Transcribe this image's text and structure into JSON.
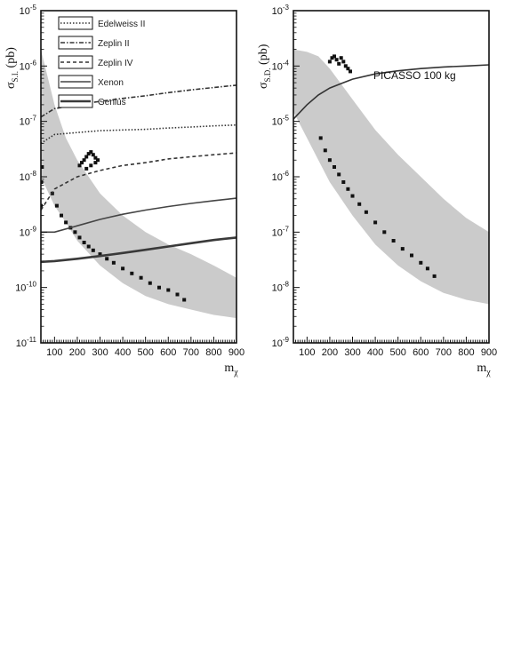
{
  "chart_data": [
    {
      "type": "line",
      "title": "",
      "xlabel": "m_χ",
      "ylabel": "σ_S.I. (pb)",
      "xlim": [
        40,
        900
      ],
      "ylim_log10": [
        -11,
        -5
      ],
      "log_y": true,
      "x_ticks": [
        "100",
        "200",
        "300",
        "400",
        "500",
        "600",
        "700",
        "800",
        "900"
      ],
      "y_ticks": [
        {
          "base": "10",
          "exp": "-11"
        },
        {
          "base": "10",
          "exp": "-10"
        },
        {
          "base": "10",
          "exp": "-9"
        },
        {
          "base": "10",
          "exp": "-8"
        },
        {
          "base": "10",
          "exp": "-7"
        },
        {
          "base": "10",
          "exp": "-6"
        },
        {
          "base": "10",
          "exp": "-5"
        }
      ],
      "legend_position": "top-left",
      "series": [
        {
          "name": "Edelweiss II",
          "style": "dotted",
          "color": "#333333",
          "x": [
            40,
            100,
            200,
            300,
            400,
            500,
            600,
            700,
            800,
            900
          ],
          "y": [
            4e-08,
            5.8e-08,
            6.3e-08,
            6.8e-08,
            7e-08,
            7.2e-08,
            7.6e-08,
            7.9e-08,
            8.3e-08,
            8.6e-08
          ]
        },
        {
          "name": "Zeplin II",
          "style": "dashdot",
          "color": "#333333",
          "x": [
            40,
            100,
            200,
            300,
            400,
            500,
            600,
            700,
            800,
            900
          ],
          "y": [
            1.2e-07,
            1.7e-07,
            2e-07,
            2.3e-07,
            2.6e-07,
            2.9e-07,
            3.3e-07,
            3.7e-07,
            4.1e-07,
            4.5e-07
          ]
        },
        {
          "name": "Zeplin IV",
          "style": "dashed",
          "color": "#333333",
          "x": [
            40,
            100,
            200,
            300,
            400,
            500,
            600,
            700,
            800,
            900
          ],
          "y": [
            2.5e-09,
            6e-09,
            1e-08,
            1.3e-08,
            1.6e-08,
            1.8e-08,
            2.1e-08,
            2.3e-08,
            2.5e-08,
            2.7e-08
          ]
        },
        {
          "name": "Xenon",
          "style": "solid",
          "color": "#444444",
          "x": [
            40,
            100,
            200,
            300,
            400,
            500,
            600,
            700,
            800,
            900
          ],
          "y": [
            1e-09,
            1e-09,
            1.3e-09,
            1.7e-09,
            2.1e-09,
            2.5e-09,
            2.9e-09,
            3.3e-09,
            3.7e-09,
            4.1e-09
          ]
        },
        {
          "name": "Genius",
          "style": "solid-thick",
          "color": "#3a3a3a",
          "x": [
            40,
            100,
            200,
            300,
            400,
            500,
            600,
            700,
            800,
            900
          ],
          "y": [
            2.9e-10,
            3e-10,
            3.3e-10,
            3.7e-10,
            4.2e-10,
            4.8e-10,
            5.5e-10,
            6.3e-10,
            7.2e-10,
            8e-10
          ]
        }
      ],
      "bands": [
        {
          "color": "#c8c8c8",
          "x": [
            40,
            100,
            150,
            200,
            300,
            400,
            500,
            600,
            700,
            800,
            900
          ],
          "upper": [
            2e-06,
            2e-07,
            5e-08,
            2e-08,
            5e-09,
            2e-09,
            1e-09,
            6e-10,
            4e-10,
            2.5e-10,
            1.5e-10
          ],
          "lower": [
            1e-08,
            3e-09,
            1.5e-09,
            7e-10,
            2.5e-10,
            1.2e-10,
            7e-11,
            5e-11,
            4e-11,
            3.2e-11,
            2.8e-11
          ]
        }
      ],
      "scatter": [
        {
          "color": "#111111",
          "x": [
            40,
            42,
            45,
            90,
            110,
            130,
            150,
            170,
            190,
            210,
            230,
            250,
            270,
            300,
            330,
            360,
            400,
            440,
            480,
            520,
            560,
            600,
            640,
            670
          ],
          "y": [
            3e-09,
            8e-09,
            1.5e-08,
            5e-09,
            3e-09,
            2e-09,
            1.5e-09,
            1.2e-09,
            1e-09,
            8e-10,
            6.5e-10,
            5.5e-10,
            4.7e-10,
            4e-10,
            3.3e-10,
            2.8e-10,
            2.2e-10,
            1.8e-10,
            1.5e-10,
            1.2e-10,
            1e-10,
            9e-11,
            7.5e-11,
            6e-11
          ]
        },
        {
          "color": "#111111",
          "x": [
            210,
            220,
            230,
            240,
            250,
            260,
            270,
            280,
            290,
            240,
            260,
            280
          ],
          "y": [
            1.6e-08,
            1.8e-08,
            2e-08,
            2.3e-08,
            2.6e-08,
            2.8e-08,
            2.5e-08,
            2.2e-08,
            2e-08,
            1.4e-08,
            1.6e-08,
            1.8e-08
          ]
        }
      ]
    },
    {
      "type": "line",
      "title": "",
      "xlabel": "m_χ",
      "ylabel": "σ_S.D. (pb)",
      "xlim": [
        40,
        900
      ],
      "ylim_log10": [
        -9,
        -3
      ],
      "log_y": true,
      "x_ticks": [
        "100",
        "200",
        "300",
        "400",
        "500",
        "600",
        "700",
        "800",
        "900"
      ],
      "y_ticks": [
        {
          "base": "10",
          "exp": "-9"
        },
        {
          "base": "10",
          "exp": "-8"
        },
        {
          "base": "10",
          "exp": "-7"
        },
        {
          "base": "10",
          "exp": "-6"
        },
        {
          "base": "10",
          "exp": "-5"
        },
        {
          "base": "10",
          "exp": "-4"
        },
        {
          "base": "10",
          "exp": "-3"
        }
      ],
      "annotations": [
        "PICASSO 100 kg"
      ],
      "series": [
        {
          "name": "PICASSO 100 kg",
          "style": "solid",
          "color": "#333333",
          "x": [
            40,
            100,
            150,
            200,
            300,
            400,
            500,
            600,
            700,
            800,
            900
          ],
          "y": [
            1.1e-05,
            2e-05,
            3e-05,
            4e-05,
            5.8e-05,
            7.2e-05,
            8.2e-05,
            9e-05,
            9.6e-05,
            0.0001,
            0.000105
          ]
        }
      ],
      "bands": [
        {
          "color": "#c8c8c8",
          "x": [
            40,
            100,
            150,
            200,
            300,
            400,
            500,
            600,
            700,
            800,
            900
          ],
          "upper": [
            0.0002,
            0.00018,
            0.00015,
            9e-05,
            2.5e-05,
            7e-06,
            2.5e-06,
            1e-06,
            4e-07,
            1.8e-07,
            1e-07
          ],
          "lower": [
            1.5e-05,
            5e-06,
            2e-06,
            8e-07,
            2e-07,
            6e-08,
            2.5e-08,
            1.3e-08,
            8e-09,
            6e-09,
            5e-09
          ]
        }
      ],
      "scatter": [
        {
          "color": "#111111",
          "x": [
            160,
            180,
            200,
            220,
            240,
            260,
            280,
            300,
            330,
            360,
            400,
            440,
            480,
            520,
            560,
            600,
            630,
            660
          ],
          "y": [
            5e-06,
            3e-06,
            2e-06,
            1.5e-06,
            1.1e-06,
            8e-07,
            6e-07,
            4.5e-07,
            3.2e-07,
            2.3e-07,
            1.5e-07,
            1e-07,
            7e-08,
            5e-08,
            3.8e-08,
            2.8e-08,
            2.2e-08,
            1.6e-08
          ]
        },
        {
          "color": "#111111",
          "x": [
            200,
            210,
            220,
            230,
            240,
            250,
            260,
            270,
            280,
            290
          ],
          "y": [
            0.00012,
            0.00014,
            0.00015,
            0.00013,
            0.00011,
            0.00014,
            0.00012,
            0.0001,
            9e-05,
            8e-05
          ]
        }
      ]
    }
  ]
}
